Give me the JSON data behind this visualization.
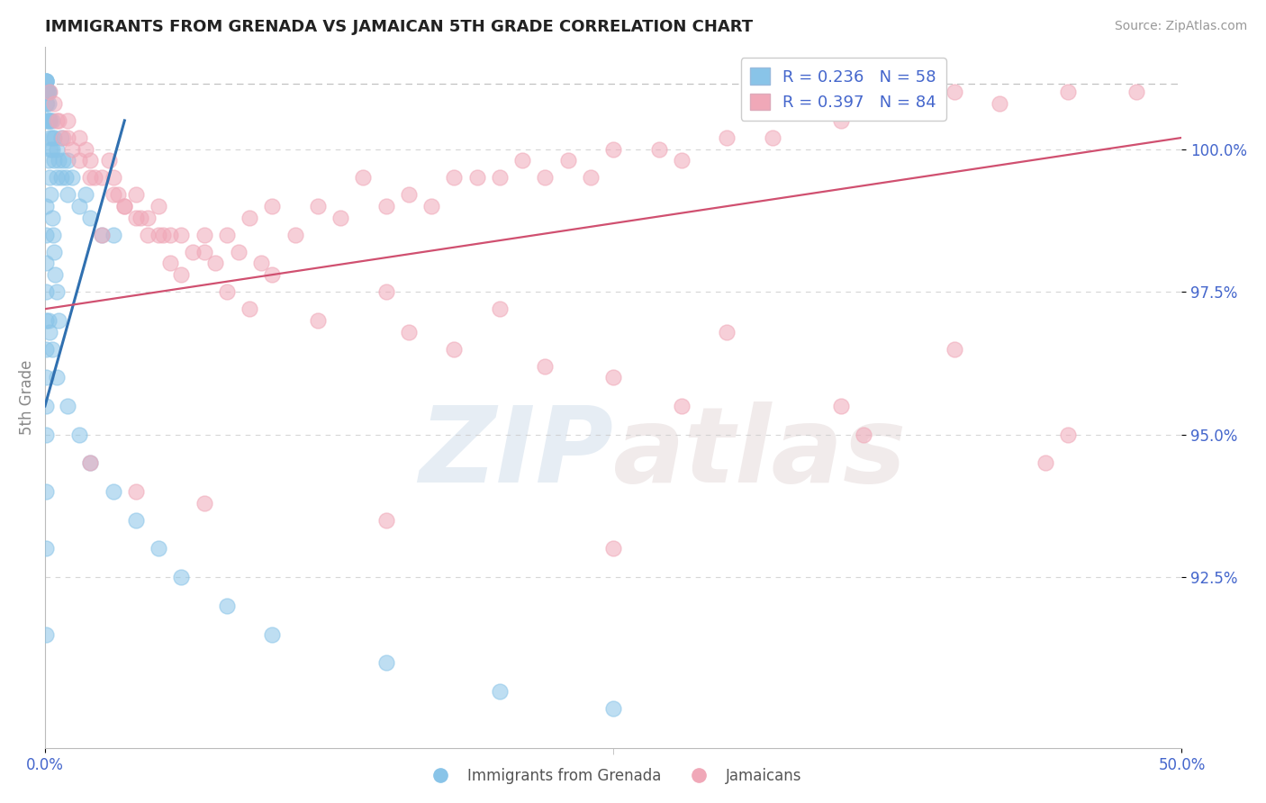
{
  "title": "IMMIGRANTS FROM GRENADA VS JAMAICAN 5TH GRADE CORRELATION CHART",
  "source": "Source: ZipAtlas.com",
  "ylabel": "5th Grade",
  "x_min": 0.0,
  "x_max": 50.0,
  "y_min": 89.5,
  "y_max": 101.8,
  "yticks": [
    92.5,
    95.0,
    97.5,
    100.0
  ],
  "ytick_labels": [
    "92.5%",
    "95.0%",
    "97.5%",
    "100.0%"
  ],
  "xticks": [
    0.0,
    50.0
  ],
  "xtick_labels": [
    "0.0%",
    "50.0%"
  ],
  "color_blue": "#89C4E8",
  "color_pink": "#F0A8B8",
  "color_blue_line": "#3070B0",
  "color_pink_line": "#D05070",
  "color_legend_text": "#4466CC",
  "watermark_zip": "ZIP",
  "watermark_atlas": "atlas",
  "blue_scatter_x": [
    0.05,
    0.05,
    0.05,
    0.05,
    0.05,
    0.05,
    0.08,
    0.08,
    0.08,
    0.12,
    0.12,
    0.15,
    0.15,
    0.15,
    0.15,
    0.2,
    0.2,
    0.25,
    0.25,
    0.3,
    0.3,
    0.3,
    0.4,
    0.4,
    0.5,
    0.5,
    0.6,
    0.7,
    0.7,
    0.8,
    0.9,
    1.0,
    1.0,
    1.2,
    1.5,
    1.8,
    2.0,
    2.5,
    3.0,
    0.05,
    0.05,
    0.05,
    0.05,
    0.05,
    0.05,
    0.05,
    0.05,
    0.05,
    0.15,
    0.2,
    0.25,
    0.3,
    0.35,
    0.4,
    0.45,
    0.5,
    0.6
  ],
  "blue_scatter_y": [
    101.2,
    101.2,
    101.2,
    101.2,
    101.0,
    100.8,
    101.0,
    100.8,
    100.5,
    101.0,
    100.5,
    101.0,
    101.0,
    100.8,
    100.5,
    100.5,
    100.2,
    100.5,
    100.0,
    100.5,
    100.2,
    100.0,
    100.2,
    99.8,
    100.0,
    99.5,
    99.8,
    100.2,
    99.5,
    99.8,
    99.5,
    99.8,
    99.2,
    99.5,
    99.0,
    99.2,
    98.8,
    98.5,
    98.5,
    99.0,
    98.5,
    98.0,
    97.5,
    97.0,
    96.5,
    96.0,
    95.5,
    95.0,
    99.8,
    99.5,
    99.2,
    98.8,
    98.5,
    98.2,
    97.8,
    97.5,
    97.0
  ],
  "blue_extra_x": [
    0.05,
    0.05,
    0.05,
    0.15,
    0.2,
    0.3,
    0.5,
    1.0,
    1.5,
    2.0,
    3.0,
    4.0,
    5.0,
    6.0,
    8.0,
    10.0,
    15.0,
    20.0,
    25.0
  ],
  "blue_extra_y": [
    94.0,
    93.0,
    91.5,
    97.0,
    96.8,
    96.5,
    96.0,
    95.5,
    95.0,
    94.5,
    94.0,
    93.5,
    93.0,
    92.5,
    92.0,
    91.5,
    91.0,
    90.5,
    90.2
  ],
  "pink_scatter_x": [
    0.2,
    0.4,
    0.6,
    0.8,
    1.0,
    1.2,
    1.5,
    1.8,
    2.0,
    2.2,
    2.5,
    2.8,
    3.0,
    3.2,
    3.5,
    4.0,
    4.2,
    4.5,
    5.0,
    5.2,
    5.5,
    6.0,
    6.5,
    7.0,
    7.5,
    8.0,
    8.5,
    9.0,
    9.5,
    10.0,
    11.0,
    12.0,
    13.0,
    14.0,
    15.0,
    16.0,
    17.0,
    18.0,
    19.0,
    20.0,
    21.0,
    22.0,
    23.0,
    24.0,
    25.0,
    27.0,
    28.0,
    30.0,
    32.0,
    35.0,
    38.0,
    40.0,
    42.0,
    45.0,
    48.0,
    0.5,
    1.0,
    1.5,
    2.0,
    3.0,
    4.0,
    5.0,
    7.0,
    10.0,
    15.0,
    20.0,
    30.0,
    40.0,
    3.5,
    4.5,
    5.5,
    8.0,
    12.0,
    18.0,
    25.0,
    35.0,
    45.0,
    2.5,
    6.0,
    9.0,
    16.0,
    22.0,
    28.0,
    36.0,
    44.0
  ],
  "pink_scatter_y": [
    101.0,
    100.8,
    100.5,
    100.2,
    100.5,
    100.0,
    100.2,
    100.0,
    99.8,
    99.5,
    99.5,
    99.8,
    99.5,
    99.2,
    99.0,
    99.2,
    98.8,
    98.8,
    99.0,
    98.5,
    98.5,
    98.5,
    98.2,
    98.5,
    98.0,
    98.5,
    98.2,
    98.8,
    98.0,
    99.0,
    98.5,
    99.0,
    98.8,
    99.5,
    99.0,
    99.2,
    99.0,
    99.5,
    99.5,
    99.5,
    99.8,
    99.5,
    99.8,
    99.5,
    100.0,
    100.0,
    99.8,
    100.2,
    100.2,
    100.5,
    100.8,
    101.0,
    100.8,
    101.0,
    101.0,
    100.5,
    100.2,
    99.8,
    99.5,
    99.2,
    98.8,
    98.5,
    98.2,
    97.8,
    97.5,
    97.2,
    96.8,
    96.5,
    99.0,
    98.5,
    98.0,
    97.5,
    97.0,
    96.5,
    96.0,
    95.5,
    95.0,
    98.5,
    97.8,
    97.2,
    96.8,
    96.2,
    95.5,
    95.0,
    94.5
  ],
  "pink_extra_x": [
    2.0,
    4.0,
    7.0,
    15.0,
    25.0
  ],
  "pink_extra_y": [
    94.5,
    94.0,
    93.8,
    93.5,
    93.0
  ],
  "blue_trend_x0": 0.0,
  "blue_trend_x1": 3.5,
  "pink_trend_x0": 0.0,
  "pink_trend_x1": 50.0,
  "blue_trend_y0": 95.5,
  "blue_trend_y1": 100.5,
  "pink_trend_y0": 97.2,
  "pink_trend_y1": 100.2
}
